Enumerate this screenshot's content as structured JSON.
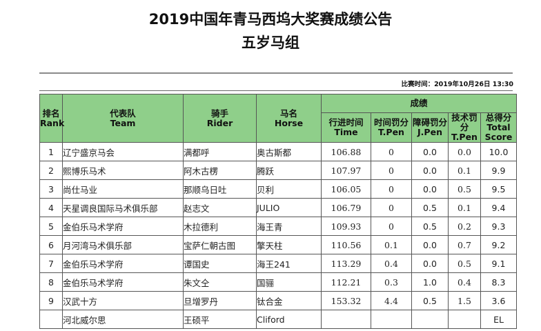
{
  "header": {
    "title": "2019中国年青马西坞大奖赛成绩公告",
    "subtitle": "五岁马组",
    "date_label": "比赛时间：2019年10月26日  13:30"
  },
  "table": {
    "head": {
      "rank": "排名",
      "rank_en": "Rank",
      "team": "代表队",
      "team_en": "Team",
      "rider": "骑手",
      "rider_en": "Rider",
      "horse": "马名",
      "horse_en": "Horse",
      "score": "成绩",
      "time": "行进时间",
      "time_en": "Time",
      "tpen": "时间罚分",
      "tpen_en": "T.Pen",
      "jpen": "障碍罚分",
      "jpen_en": "J.Pen",
      "tpen2": "技术罚分",
      "tpen2_en": "T.Pen",
      "total": "总得分",
      "total_en": "Total Score"
    },
    "rows": [
      {
        "rank": "1",
        "team": "辽宁盛京马会",
        "rider": "满都呼",
        "horse": "奥古斯都",
        "time": "106.88",
        "tpen": "0",
        "jpen": "0.0",
        "tpen2": "0.0",
        "total": "10.0"
      },
      {
        "rank": "2",
        "team": "熙博乐马术",
        "rider": "阿木古楞",
        "horse": "腾跃",
        "time": "107.97",
        "tpen": "0",
        "jpen": "0.0",
        "tpen2": "0.1",
        "total": "9.9"
      },
      {
        "rank": "3",
        "team": "尚仕马业",
        "rider": "那顺乌日吐",
        "horse": "贝利",
        "time": "106.05",
        "tpen": "0",
        "jpen": "0.0",
        "tpen2": "0.5",
        "total": "9.5"
      },
      {
        "rank": "4",
        "team": "天星调良国际马术俱乐部",
        "rider": "赵志文",
        "horse": "JULIO",
        "time": "106.79",
        "tpen": "0",
        "jpen": "0.5",
        "tpen2": "0.1",
        "total": "9.4"
      },
      {
        "rank": "5",
        "team": "金伯乐马术学府",
        "rider": "木拉德利",
        "horse": "海王青",
        "time": "109.93",
        "tpen": "0",
        "jpen": "0.5",
        "tpen2": "0.2",
        "total": "9.3"
      },
      {
        "rank": "6",
        "team": "月河湾马术俱乐部",
        "rider": "宝萨仁朝古图",
        "horse": "擎天柱",
        "time": "110.56",
        "tpen": "0.1",
        "jpen": "0.0",
        "tpen2": "0.7",
        "total": "9.2"
      },
      {
        "rank": "7",
        "team": "金伯乐马术学府",
        "rider": "谭国史",
        "horse": "海王241",
        "time": "113.29",
        "tpen": "0.4",
        "jpen": "0.0",
        "tpen2": "0.5",
        "total": "9.1"
      },
      {
        "rank": "8",
        "team": "金伯乐马术学府",
        "rider": "朱文仝",
        "horse": "国骊",
        "time": "112.21",
        "tpen": "0.3",
        "jpen": "1.0",
        "tpen2": "0.4",
        "total": "8.3"
      },
      {
        "rank": "9",
        "team": "汉武十方",
        "rider": "旦增罗丹",
        "horse": "钛合金",
        "time": "153.32",
        "tpen": "4.4",
        "jpen": "0.5",
        "tpen2": "1.5",
        "total": "3.6"
      },
      {
        "rank": "",
        "team": "河北威尔思",
        "rider": "王硕平",
        "horse": "Cliford",
        "time": "",
        "tpen": "",
        "jpen": "",
        "tpen2": "",
        "total": "EL"
      }
    ]
  }
}
